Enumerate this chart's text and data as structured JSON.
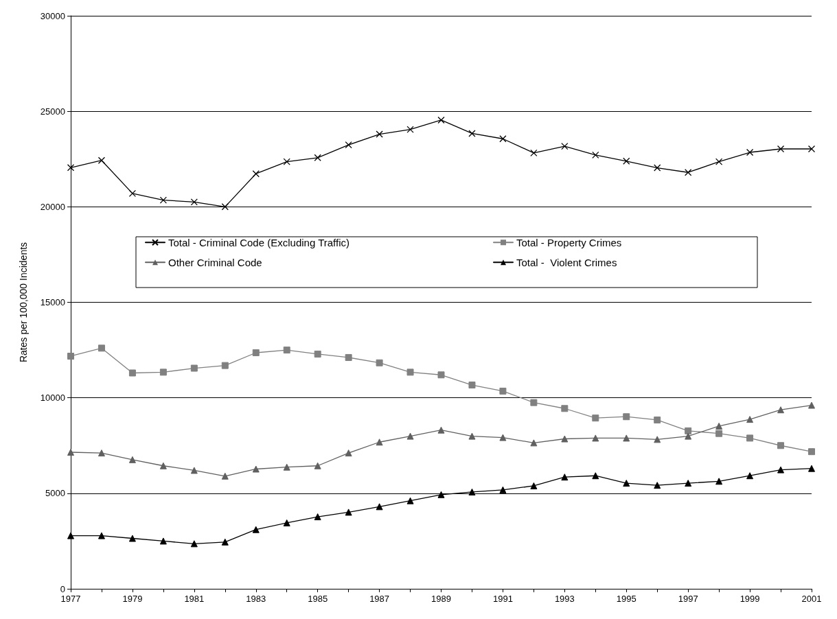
{
  "chart_data": {
    "type": "line",
    "ylabel": "Rates per 100,000 Incidents",
    "categories": [
      "1977",
      null,
      "1979",
      null,
      "1981",
      null,
      "1983",
      null,
      "1985",
      null,
      "1987",
      null,
      "1989",
      null,
      "1991",
      null,
      "1993",
      null,
      "1995",
      null,
      "1997",
      null,
      "1999",
      null,
      "2001"
    ],
    "ylim": [
      0,
      30000
    ],
    "yticks": [
      0,
      5000,
      10000,
      15000,
      20000,
      25000,
      30000
    ],
    "grid": "y",
    "legend": "center",
    "series": [
      {
        "name": "Total - Criminal Code (Excluding Traffic)",
        "color": "#000000",
        "marker": "cross",
        "values": [
          22050,
          22430,
          20700,
          20350,
          20250,
          20000,
          21730,
          22360,
          22570,
          23240,
          23800,
          24050,
          24540,
          23840,
          23560,
          22820,
          23170,
          22710,
          22390,
          22040,
          21800,
          22360,
          22850,
          23030,
          23030
        ]
      },
      {
        "name": "Total - Property Crimes",
        "color": "#808080",
        "marker": "square",
        "values": [
          12180,
          12600,
          11300,
          11340,
          11550,
          11690,
          12360,
          12500,
          12290,
          12110,
          11830,
          11340,
          11200,
          10670,
          10350,
          9750,
          9440,
          8940,
          9010,
          8840,
          8270,
          8130,
          7890,
          7500,
          7180
        ]
      },
      {
        "name": "Other Criminal Code",
        "color": "#606060",
        "marker": "triangle",
        "values": [
          7150,
          7110,
          6760,
          6440,
          6200,
          5900,
          6270,
          6370,
          6440,
          7110,
          7680,
          7990,
          8310,
          7990,
          7920,
          7640,
          7850,
          7890,
          7890,
          7820,
          7990,
          8520,
          8870,
          9370,
          9610
        ]
      },
      {
        "name": "Total -  Violent Crimes",
        "color": "#000000",
        "marker": "triangle",
        "values": [
          2780,
          2780,
          2640,
          2500,
          2360,
          2450,
          3100,
          3450,
          3770,
          4010,
          4300,
          4610,
          4930,
          5070,
          5180,
          5390,
          5850,
          5920,
          5530,
          5420,
          5530,
          5630,
          5920,
          6230,
          6300
        ]
      }
    ]
  }
}
